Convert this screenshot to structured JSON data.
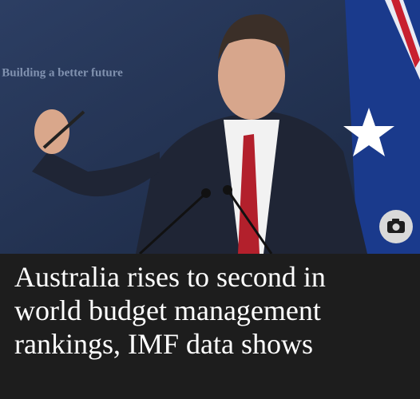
{
  "photo": {
    "backdrop_text": "Building a better future"
  },
  "headline": {
    "lines": [
      "Australia rises to second in",
      "world budget management",
      "rankings, IMF data shows"
    ]
  }
}
